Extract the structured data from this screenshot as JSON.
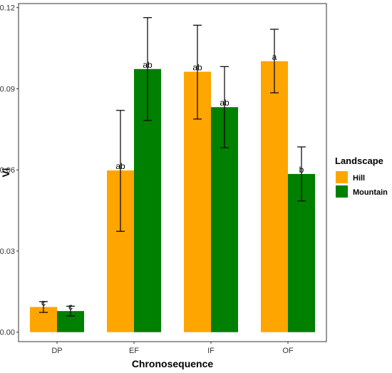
{
  "chart_data": {
    "type": "bar",
    "title": "",
    "xlabel": "Chronosequence",
    "ylabel": "Vi",
    "categories": [
      "DP",
      "EF",
      "IF",
      "OF"
    ],
    "ylim": [
      -0.0035,
      0.1215
    ],
    "yticks": [
      0.0,
      0.03,
      0.06,
      0.09,
      0.12
    ],
    "ytick_labels": [
      "0.00",
      "0.03",
      "0.06",
      "0.09",
      "0.12"
    ],
    "legend": {
      "title": "Landscape",
      "position": "right"
    },
    "grid": false,
    "series": [
      {
        "name": "Hill",
        "color": "#FFA500",
        "values": [
          0.0093,
          0.0598,
          0.0963,
          0.1002
        ],
        "err_low": [
          0.0073,
          0.0373,
          0.0788,
          0.0885
        ],
        "err_high": [
          0.0113,
          0.082,
          0.1135,
          0.112
        ],
        "labels": [
          "c",
          "ab",
          "ab",
          "a"
        ]
      },
      {
        "name": "Mountain",
        "color": "#008000",
        "values": [
          0.0078,
          0.0973,
          0.0832,
          0.0585
        ],
        "err_low": [
          0.006,
          0.0783,
          0.0682,
          0.0485
        ],
        "err_high": [
          0.0096,
          0.1163,
          0.0982,
          0.0685
        ],
        "labels": [
          "c",
          "ab",
          "ab",
          "b"
        ]
      }
    ]
  }
}
